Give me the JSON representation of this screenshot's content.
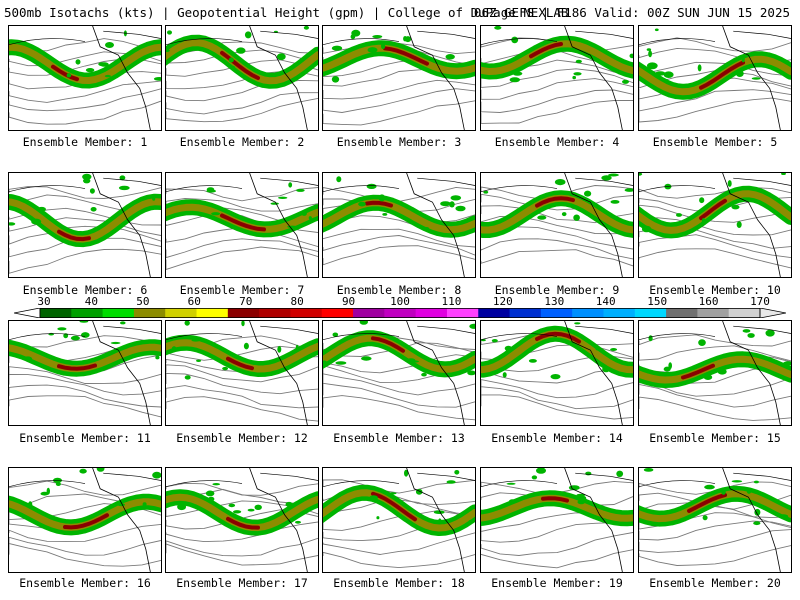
{
  "header": {
    "left_title": "500mb Isotachs (kts) | Geopotential Height (gpm) | College of DuPage NEXLAB",
    "right_title": "06Z GEFS | F186 Valid: 00Z SUN JUN 15 2025"
  },
  "colorbar": {
    "tick_labels": [
      "30",
      "40",
      "50",
      "60",
      "70",
      "80",
      "90",
      "100",
      "110",
      "120",
      "130",
      "140",
      "150",
      "160",
      "170"
    ],
    "colors": [
      "#006400",
      "#00a000",
      "#00dd00",
      "#8c8c00",
      "#d0d000",
      "#ffff00",
      "#8b0000",
      "#b00000",
      "#d00000",
      "#ff0000",
      "#a000a0",
      "#c000c0",
      "#e000e0",
      "#ff40ff",
      "#0000a0",
      "#0030d0",
      "#0060ff",
      "#0090ff",
      "#00b0ff",
      "#00d8ff",
      "#707070",
      "#a0a0a0",
      "#d0d0d0"
    ]
  },
  "legend_units": "kts",
  "members": [
    {
      "label": "Ensemble Member: 1"
    },
    {
      "label": "Ensemble Member: 2"
    },
    {
      "label": "Ensemble Member: 3"
    },
    {
      "label": "Ensemble Member: 4"
    },
    {
      "label": "Ensemble Member: 5"
    },
    {
      "label": "Ensemble Member: 6"
    },
    {
      "label": "Ensemble Member: 7"
    },
    {
      "label": "Ensemble Member: 8"
    },
    {
      "label": "Ensemble Member: 9"
    },
    {
      "label": "Ensemble Member: 10"
    },
    {
      "label": "Ensemble Member: 11"
    },
    {
      "label": "Ensemble Member: 12"
    },
    {
      "label": "Ensemble Member: 13"
    },
    {
      "label": "Ensemble Member: 14"
    },
    {
      "label": "Ensemble Member: 15"
    },
    {
      "label": "Ensemble Member: 16"
    },
    {
      "label": "Ensemble Member: 17"
    },
    {
      "label": "Ensemble Member: 18"
    },
    {
      "label": "Ensemble Member: 19"
    },
    {
      "label": "Ensemble Member: 20"
    }
  ],
  "colors": {
    "jet_outer": "#00b400",
    "jet_mid": "#8c8c00",
    "jet_core": "#8b0000",
    "contour": "#7a7a7a",
    "coast": "#000000"
  }
}
